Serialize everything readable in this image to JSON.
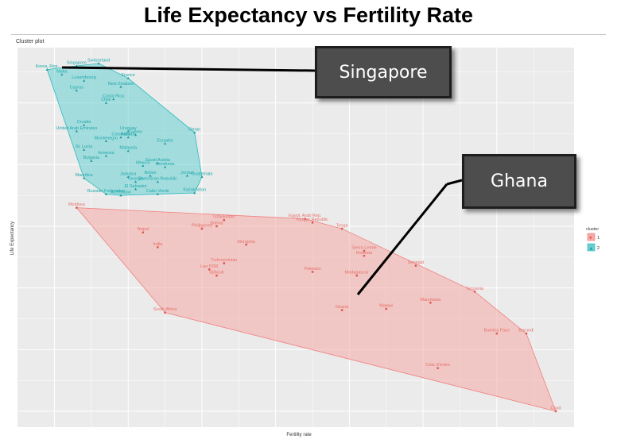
{
  "slide_title": "Life Expectancy vs Fertility Rate",
  "callouts": {
    "singapore": "Singapore",
    "ghana": "Ghana"
  },
  "colors": {
    "cluster1": "#f08080",
    "cluster2": "#2bbbbd",
    "panel": "#ebebeb"
  },
  "chart_data": {
    "type": "scatter",
    "title": "Cluster plot",
    "xlabel": "Fertility rate",
    "ylabel": "Life Expectancy",
    "grid": true,
    "legend": {
      "title": "cluster",
      "position": "right",
      "entries": [
        "1",
        "2"
      ]
    },
    "clusters": [
      {
        "name": "1",
        "color": "#f08080",
        "points": [
          {
            "label": "Moldova",
            "x": 1.3,
            "y": 71.5
          },
          {
            "label": "Nepal",
            "x": 2.2,
            "y": 69.5
          },
          {
            "label": "India",
            "x": 2.4,
            "y": 68.3
          },
          {
            "label": "Philippines",
            "x": 3.0,
            "y": 69.8
          },
          {
            "label": "Bolivia",
            "x": 3.2,
            "y": 70.0
          },
          {
            "label": "Uzbekistan",
            "x": 3.3,
            "y": 70.5
          },
          {
            "label": "Mongolia",
            "x": 3.6,
            "y": 68.5
          },
          {
            "label": "Turkmenistan",
            "x": 3.3,
            "y": 67.0
          },
          {
            "label": "Lao PDR",
            "x": 3.1,
            "y": 66.5
          },
          {
            "label": "Djibouti",
            "x": 3.2,
            "y": 66.0
          },
          {
            "label": "South Africa",
            "x": 2.5,
            "y": 63.0
          },
          {
            "label": "Egypt, Arab Rep.",
            "x": 4.4,
            "y": 70.6
          },
          {
            "label": "Kyrgyz Republic",
            "x": 4.5,
            "y": 70.3
          },
          {
            "label": "Tonga",
            "x": 4.9,
            "y": 69.8
          },
          {
            "label": "Sierra Leone",
            "x": 5.2,
            "y": 68.0
          },
          {
            "label": "Rwanda",
            "x": 5.2,
            "y": 67.6
          },
          {
            "label": "Pakistan",
            "x": 4.5,
            "y": 66.3
          },
          {
            "label": "Madagascar",
            "x": 5.1,
            "y": 66.0
          },
          {
            "label": "Senegal",
            "x": 5.9,
            "y": 66.8
          },
          {
            "label": "Ghana",
            "x": 4.9,
            "y": 63.2
          },
          {
            "label": "Malawi",
            "x": 5.5,
            "y": 63.3
          },
          {
            "label": "Mauritania",
            "x": 6.1,
            "y": 63.8
          },
          {
            "label": "Tanzania",
            "x": 6.7,
            "y": 64.7
          },
          {
            "label": "Burkina Faso",
            "x": 7.0,
            "y": 61.3
          },
          {
            "label": "Burundi",
            "x": 7.4,
            "y": 61.3
          },
          {
            "label": "Cote d'Ivoire",
            "x": 6.2,
            "y": 58.5
          },
          {
            "label": "Chad",
            "x": 7.8,
            "y": 55.0
          }
        ]
      },
      {
        "name": "2",
        "color": "#2bbbbd",
        "points": [
          {
            "label": "Korea, Rep.",
            "x": 0.9,
            "y": 82.7
          },
          {
            "label": "Singapore",
            "x": 1.3,
            "y": 83.0
          },
          {
            "label": "Switzerland",
            "x": 1.6,
            "y": 83.2
          },
          {
            "label": "Malta",
            "x": 1.1,
            "y": 82.3
          },
          {
            "label": "Luxembourg",
            "x": 1.4,
            "y": 81.8
          },
          {
            "label": "New Zealand",
            "x": 1.9,
            "y": 81.3
          },
          {
            "label": "France",
            "x": 2.0,
            "y": 82.0
          },
          {
            "label": "Cyprus",
            "x": 1.3,
            "y": 81.0
          },
          {
            "label": "Costa Rica",
            "x": 1.8,
            "y": 80.3
          },
          {
            "label": "Chile",
            "x": 1.7,
            "y": 80.0
          },
          {
            "label": "Croatia",
            "x": 1.4,
            "y": 78.2
          },
          {
            "label": "United Arab Emirates",
            "x": 1.3,
            "y": 77.7
          },
          {
            "label": "Uruguay",
            "x": 2.0,
            "y": 77.7
          },
          {
            "label": "Montenegro",
            "x": 1.7,
            "y": 76.9
          },
          {
            "label": "Colombia",
            "x": 1.9,
            "y": 77.2
          },
          {
            "label": "Bahrain",
            "x": 2.0,
            "y": 77.2
          },
          {
            "label": "Turkey",
            "x": 2.1,
            "y": 77.4
          },
          {
            "label": "Oman",
            "x": 2.9,
            "y": 77.6
          },
          {
            "label": "St. Lucia",
            "x": 1.4,
            "y": 76.2
          },
          {
            "label": "Armenia",
            "x": 1.7,
            "y": 75.7
          },
          {
            "label": "Malaysia",
            "x": 2.0,
            "y": 76.1
          },
          {
            "label": "Bulgaria",
            "x": 1.5,
            "y": 75.3
          },
          {
            "label": "Saudi Arabia",
            "x": 2.4,
            "y": 75.1
          },
          {
            "label": "Ecuador",
            "x": 2.5,
            "y": 76.7
          },
          {
            "label": "Mauritius",
            "x": 1.4,
            "y": 73.9
          },
          {
            "label": "Jamaica",
            "x": 2.0,
            "y": 74.0
          },
          {
            "label": "Mexico",
            "x": 2.2,
            "y": 74.9
          },
          {
            "label": "Belize",
            "x": 2.3,
            "y": 74.1
          },
          {
            "label": "Georgia",
            "x": 2.1,
            "y": 73.6
          },
          {
            "label": "Dominican Republic",
            "x": 2.4,
            "y": 73.6
          },
          {
            "label": "Honduras",
            "x": 2.5,
            "y": 74.8
          },
          {
            "label": "Jordan",
            "x": 2.8,
            "y": 74.1
          },
          {
            "label": "Guatemala",
            "x": 3.0,
            "y": 74.0
          },
          {
            "label": "El Salvador",
            "x": 2.1,
            "y": 73.0
          },
          {
            "label": "Russian Federation",
            "x": 1.7,
            "y": 72.6
          },
          {
            "label": "Azerbaijan",
            "x": 1.9,
            "y": 72.5
          },
          {
            "label": "Cabo Verde",
            "x": 2.4,
            "y": 72.6
          },
          {
            "label": "Kazakhstan",
            "x": 2.9,
            "y": 72.7
          }
        ]
      }
    ]
  }
}
